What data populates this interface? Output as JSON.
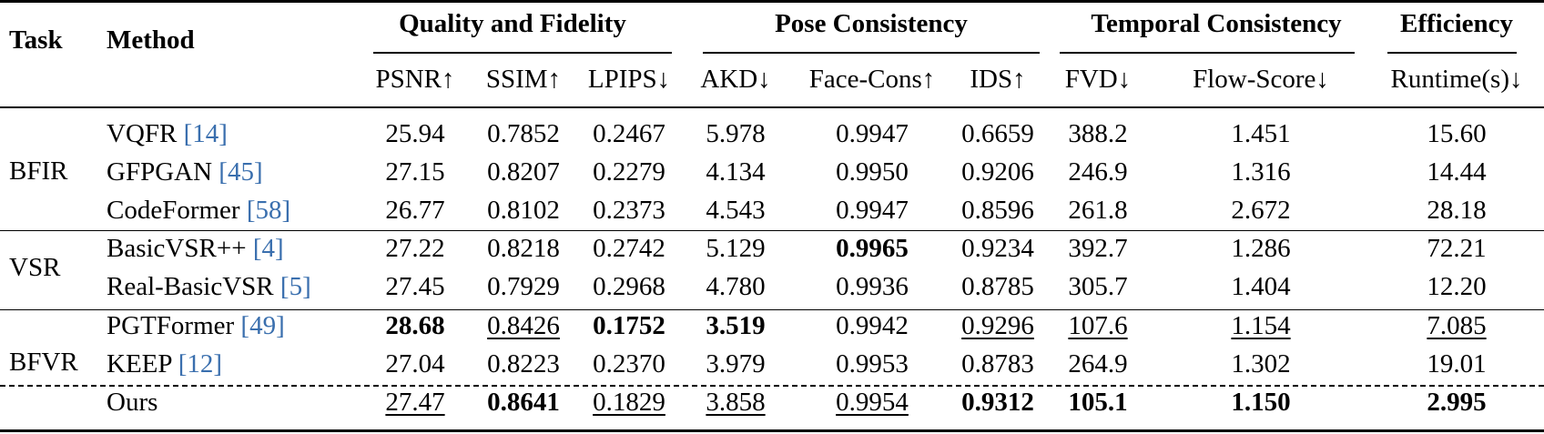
{
  "header": {
    "task": "Task",
    "method": "Method",
    "groups": [
      {
        "label": "Quality and Fidelity"
      },
      {
        "label": "Pose Consistency"
      },
      {
        "label": "Temporal Consistency"
      },
      {
        "label": "Efficiency"
      }
    ],
    "metrics": [
      "PSNR↑",
      "SSIM↑",
      "LPIPS↓",
      "AKD↓",
      "Face-Cons↑",
      "IDS↑",
      "FVD↓",
      "Flow-Score↓",
      "Runtime(s)↓"
    ]
  },
  "tasks": [
    {
      "label": "BFIR"
    },
    {
      "label": "VSR"
    },
    {
      "label": "BFVR"
    }
  ],
  "rows": [
    {
      "method": "VQFR ",
      "ref": "[14]",
      "cells": [
        {
          "v": "25.94"
        },
        {
          "v": "0.7852"
        },
        {
          "v": "0.2467"
        },
        {
          "v": "5.978"
        },
        {
          "v": "0.9947"
        },
        {
          "v": "0.6659"
        },
        {
          "v": "388.2"
        },
        {
          "v": "1.451"
        },
        {
          "v": "15.60"
        }
      ]
    },
    {
      "method": "GFPGAN ",
      "ref": "[45]",
      "cells": [
        {
          "v": "27.15"
        },
        {
          "v": "0.8207"
        },
        {
          "v": "0.2279"
        },
        {
          "v": "4.134"
        },
        {
          "v": "0.9950"
        },
        {
          "v": "0.9206"
        },
        {
          "v": "246.9"
        },
        {
          "v": "1.316"
        },
        {
          "v": "14.44"
        }
      ]
    },
    {
      "method": "CodeFormer ",
      "ref": "[58]",
      "cells": [
        {
          "v": "26.77"
        },
        {
          "v": "0.8102"
        },
        {
          "v": "0.2373"
        },
        {
          "v": "4.543"
        },
        {
          "v": "0.9947"
        },
        {
          "v": "0.8596"
        },
        {
          "v": "261.8"
        },
        {
          "v": "2.672"
        },
        {
          "v": "28.18"
        }
      ]
    },
    {
      "method": "BasicVSR++ ",
      "ref": "[4]",
      "cells": [
        {
          "v": "27.22"
        },
        {
          "v": "0.8218"
        },
        {
          "v": "0.2742"
        },
        {
          "v": "5.129"
        },
        {
          "v": "0.9965",
          "s": "b"
        },
        {
          "v": "0.9234"
        },
        {
          "v": "392.7"
        },
        {
          "v": "1.286"
        },
        {
          "v": "72.21"
        }
      ]
    },
    {
      "method": "Real-BasicVSR ",
      "ref": "[5]",
      "cells": [
        {
          "v": "27.45"
        },
        {
          "v": "0.7929"
        },
        {
          "v": "0.2968"
        },
        {
          "v": "4.780"
        },
        {
          "v": "0.9936"
        },
        {
          "v": "0.8785"
        },
        {
          "v": "305.7"
        },
        {
          "v": "1.404"
        },
        {
          "v": "12.20"
        }
      ]
    },
    {
      "method": "PGTFormer ",
      "ref": "[49]",
      "cells": [
        {
          "v": "28.68",
          "s": "b"
        },
        {
          "v": "0.8426",
          "s": "u"
        },
        {
          "v": "0.1752",
          "s": "b"
        },
        {
          "v": "3.519",
          "s": "b"
        },
        {
          "v": "0.9942"
        },
        {
          "v": "0.9296",
          "s": "u"
        },
        {
          "v": "107.6",
          "s": "u"
        },
        {
          "v": "1.154",
          "s": "u"
        },
        {
          "v": "7.085",
          "s": "u"
        }
      ]
    },
    {
      "method": "KEEP ",
      "ref": "[12]",
      "cells": [
        {
          "v": "27.04"
        },
        {
          "v": "0.8223"
        },
        {
          "v": "0.2370"
        },
        {
          "v": "3.979"
        },
        {
          "v": "0.9953"
        },
        {
          "v": "0.8783"
        },
        {
          "v": "264.9"
        },
        {
          "v": "1.302"
        },
        {
          "v": "19.01"
        }
      ]
    },
    {
      "method": "Ours",
      "ref": "",
      "cells": [
        {
          "v": "27.47",
          "s": "u"
        },
        {
          "v": "0.8641",
          "s": "b"
        },
        {
          "v": "0.1829",
          "s": "u"
        },
        {
          "v": "3.858",
          "s": "u"
        },
        {
          "v": "0.9954",
          "s": "u"
        },
        {
          "v": "0.9312",
          "s": "b"
        },
        {
          "v": "105.1",
          "s": "b"
        },
        {
          "v": "1.150",
          "s": "b"
        },
        {
          "v": "2.995",
          "s": "b"
        }
      ]
    }
  ]
}
